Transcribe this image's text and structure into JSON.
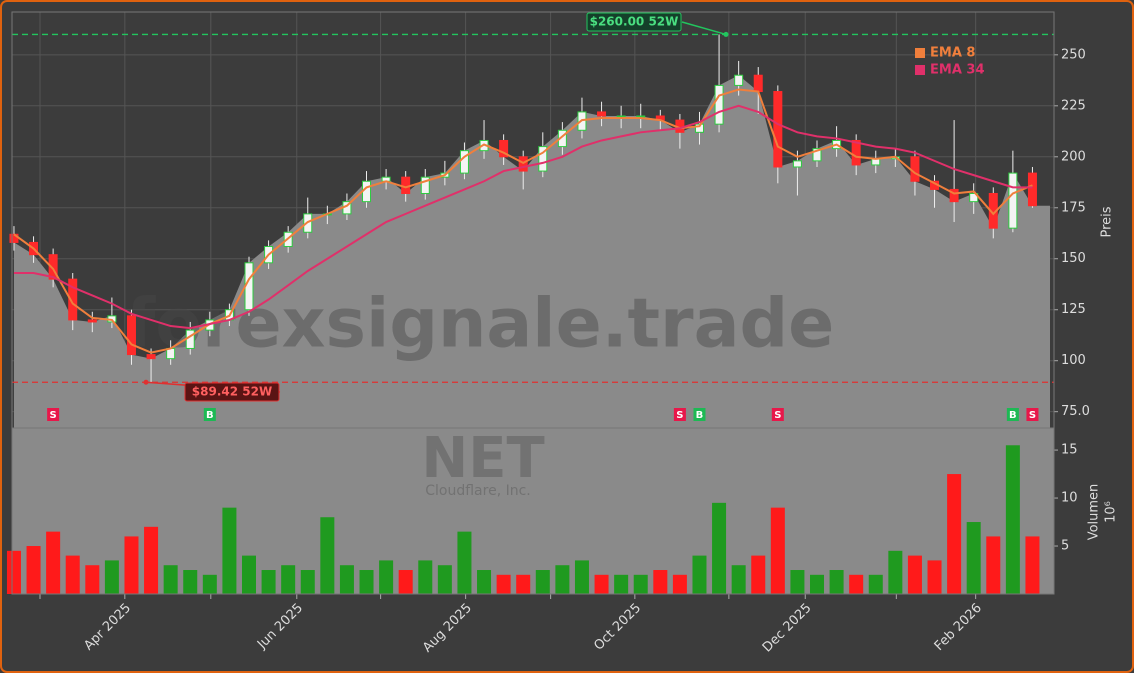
{
  "chart_data": [
    {
      "type": "candlestick",
      "y_label": "Preis",
      "watermark": "forexsignale.trade",
      "ticker": "NET",
      "company": "Cloudflare, Inc.",
      "open": [
        162,
        158,
        152,
        140,
        120,
        119,
        122,
        103,
        101,
        106,
        115,
        120,
        125,
        148,
        156,
        163,
        172,
        172,
        178,
        188,
        190,
        182,
        190,
        192,
        203,
        208,
        200,
        193,
        205,
        213,
        222,
        220,
        220,
        220,
        218,
        212,
        216,
        235,
        240,
        232,
        195,
        198,
        204,
        208,
        196,
        199,
        200,
        188,
        184,
        178,
        182,
        165,
        192
      ],
      "high": [
        166,
        161,
        155,
        143,
        124,
        131,
        125,
        106,
        110,
        119,
        124,
        128,
        151,
        159,
        166,
        180,
        176,
        182,
        193,
        194,
        193,
        194,
        198,
        207,
        218,
        211,
        203,
        212,
        217,
        229,
        227,
        225,
        226,
        223,
        221,
        222,
        260,
        247,
        244,
        235,
        203,
        208,
        215,
        211,
        203,
        204,
        203,
        191,
        218,
        187,
        185,
        203,
        195
      ],
      "low": [
        154,
        148,
        136,
        115,
        114,
        116,
        98,
        89.42,
        98,
        103,
        112,
        117,
        122,
        145,
        153,
        160,
        167,
        169,
        175,
        184,
        178,
        179,
        186,
        189,
        199,
        196,
        184,
        190,
        201,
        209,
        215,
        214,
        214,
        213,
        204,
        206,
        212,
        230,
        221,
        187,
        181,
        195,
        200,
        191,
        192,
        195,
        181,
        175,
        168,
        172,
        160,
        163,
        175
      ],
      "close": [
        158,
        152,
        140,
        120,
        119,
        122,
        103,
        101,
        106,
        115,
        120,
        125,
        148,
        156,
        163,
        172,
        172,
        178,
        188,
        190,
        182,
        190,
        192,
        203,
        208,
        200,
        193,
        205,
        213,
        222,
        220,
        220,
        220,
        218,
        212,
        216,
        235,
        240,
        232,
        195,
        198,
        204,
        208,
        196,
        199,
        200,
        188,
        184,
        178,
        182,
        165,
        192,
        176
      ],
      "series": [
        {
          "name": "EMA 8",
          "color": "#f07f3c",
          "values": [
            162,
            155,
            145,
            128,
            121,
            120,
            108,
            104,
            106,
            112,
            118,
            122,
            140,
            152,
            160,
            168,
            172,
            176,
            185,
            188,
            185,
            188,
            191,
            200,
            206,
            202,
            197,
            202,
            210,
            218,
            219,
            219,
            219,
            218,
            214,
            215,
            230,
            233,
            232,
            205,
            200,
            203,
            206,
            200,
            199,
            200,
            192,
            187,
            182,
            183,
            172,
            182,
            186
          ]
        },
        {
          "name": "EMA 34",
          "color": "#e0306a",
          "values": [
            143,
            143,
            141,
            136,
            132,
            128,
            123,
            120,
            117,
            116,
            118,
            120,
            124,
            130,
            137,
            144,
            150,
            156,
            162,
            168,
            172,
            176,
            180,
            184,
            188,
            193,
            195,
            197,
            200,
            205,
            208,
            210,
            212,
            213,
            214,
            217,
            222,
            225,
            222,
            216,
            212,
            210,
            209,
            207,
            205,
            204,
            202,
            198,
            194,
            191,
            188,
            185,
            185
          ]
        }
      ],
      "up_color": "#2ecc40",
      "down_color": "#ff2a2a",
      "area_color": "#8a8a8a",
      "ylim": [
        67,
        271
      ],
      "yticks": [
        {
          "value": 75,
          "label": "75.0"
        },
        100,
        125,
        150,
        175,
        200,
        225,
        250
      ],
      "hlines": [
        {
          "value": 260,
          "label": "$260.00 52W",
          "color": "#22c55e"
        },
        {
          "value": 89.42,
          "label": "$89.42 52W",
          "color": "#e03030"
        }
      ],
      "signals": [
        {
          "x": 2,
          "label": "S",
          "color": "#e8174a"
        },
        {
          "x": 10,
          "label": "B",
          "color": "#1db954"
        },
        {
          "x": 34,
          "label": "S",
          "color": "#e8174a"
        },
        {
          "x": 35,
          "label": "B",
          "color": "#1db954"
        },
        {
          "x": 39,
          "label": "S",
          "color": "#e8174a"
        },
        {
          "x": 51,
          "label": "B",
          "color": "#1db954"
        },
        {
          "x": 52,
          "label": "S",
          "color": "#e8174a"
        }
      ],
      "grid": true,
      "legend": "upper right"
    },
    {
      "type": "bar",
      "y_label": "Volumen",
      "y_unit": "10⁶",
      "values": [
        4.5,
        5,
        6.5,
        4,
        3,
        3.5,
        6,
        7,
        3,
        2.5,
        2,
        9,
        4,
        2.5,
        3,
        2.5,
        8,
        3,
        2.5,
        3.5,
        2.5,
        3.5,
        3,
        6.5,
        2.5,
        2,
        2,
        2.5,
        3,
        3.5,
        2,
        2,
        2,
        2.5,
        2,
        4,
        9.5,
        3,
        4,
        9,
        2.5,
        2,
        2.5,
        2,
        2,
        4.5,
        4,
        3.5,
        12.5,
        7.5,
        6,
        15.5,
        6
      ],
      "ylim": [
        0,
        17.3
      ],
      "yticks": [
        5,
        10,
        15
      ],
      "xlim": [
        -0.1,
        53.1
      ],
      "xticks": [
        {
          "value": 5.66,
          "label": "Apr 2025"
        },
        {
          "value": 14.44,
          "label": "Jun 2025"
        },
        {
          "value": 23.06,
          "label": "Aug 2025"
        },
        {
          "value": 31.7,
          "label": "Oct 2025"
        },
        {
          "value": 40.4,
          "label": "Dec 2025"
        },
        {
          "value": 49.1,
          "label": "Feb 2026"
        }
      ],
      "xticks_minor": [
        1.33,
        10.05,
        18.72,
        27.4,
        36.5,
        45.05
      ]
    }
  ]
}
